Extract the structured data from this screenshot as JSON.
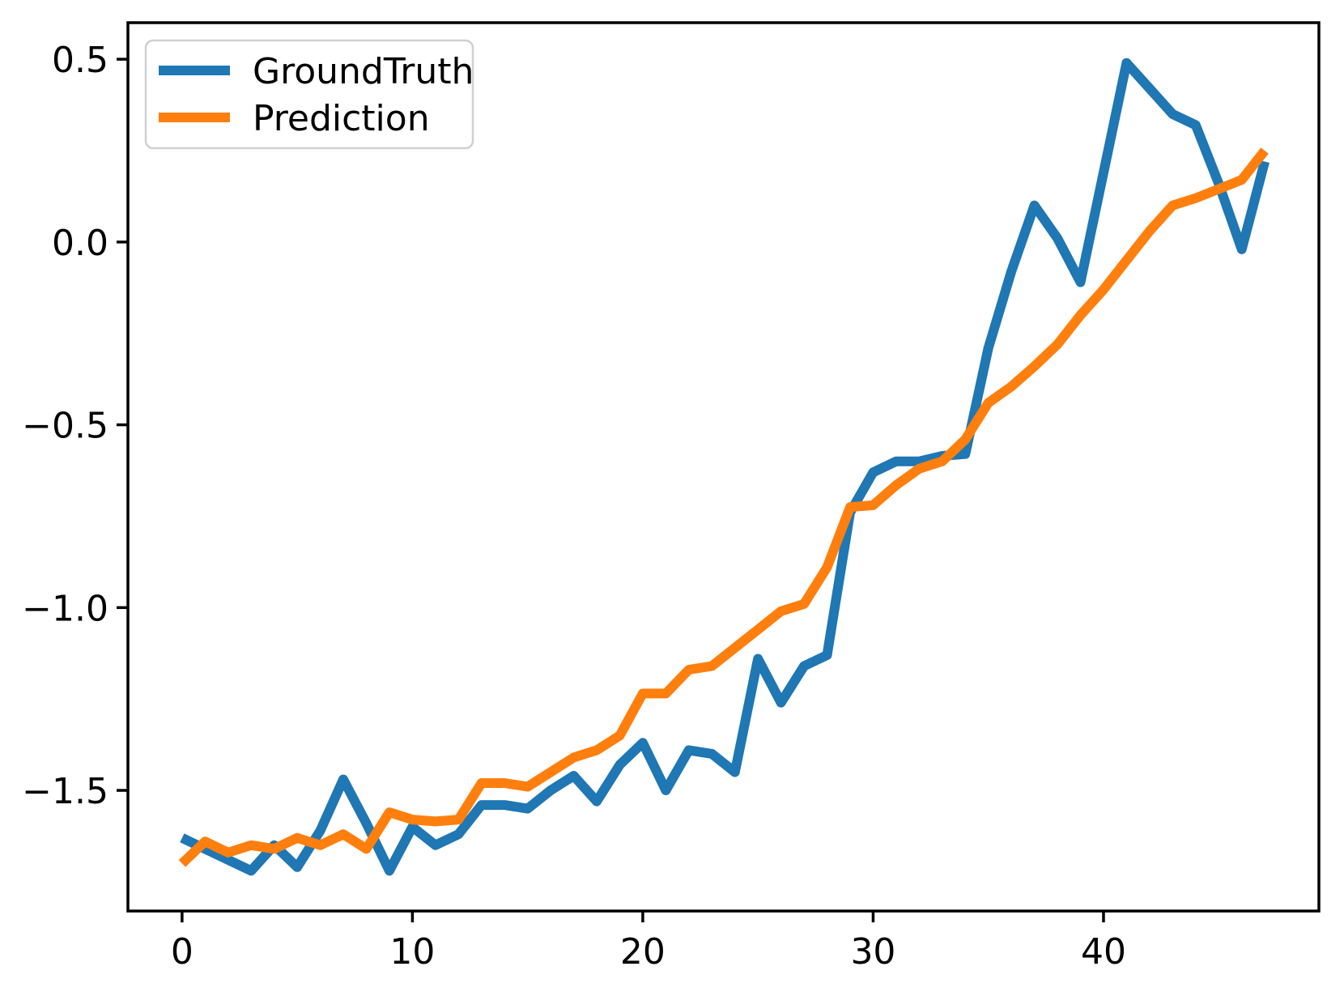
{
  "chart_data": {
    "type": "line",
    "title": "",
    "xlabel": "",
    "ylabel": "",
    "grid": false,
    "background_color": "#ffffff",
    "spine_color": "#000000",
    "x": [
      0,
      1,
      2,
      3,
      4,
      5,
      6,
      7,
      8,
      9,
      10,
      11,
      12,
      13,
      14,
      15,
      16,
      17,
      18,
      19,
      20,
      21,
      22,
      23,
      24,
      25,
      26,
      27,
      28,
      29,
      30,
      31,
      32,
      33,
      34,
      35,
      36,
      37,
      38,
      39,
      40,
      41,
      42,
      43,
      44,
      45,
      46,
      47
    ],
    "series": [
      {
        "name": "GroundTruth",
        "color": "#1f77b4",
        "values": [
          -1.63,
          -1.66,
          -1.69,
          -1.72,
          -1.65,
          -1.71,
          -1.61,
          -1.47,
          -1.59,
          -1.72,
          -1.6,
          -1.65,
          -1.62,
          -1.54,
          -1.54,
          -1.55,
          -1.5,
          -1.46,
          -1.53,
          -1.43,
          -1.37,
          -1.5,
          -1.39,
          -1.4,
          -1.45,
          -1.14,
          -1.26,
          -1.16,
          -1.13,
          -0.74,
          -0.63,
          -0.6,
          -0.6,
          -0.585,
          -0.58,
          -0.29,
          -0.08,
          0.1,
          0.01,
          -0.11,
          0.19,
          0.49,
          0.42,
          0.35,
          0.32,
          0.16,
          -0.02,
          0.22
        ]
      },
      {
        "name": "Prediction",
        "color": "#ff7f0e",
        "values": [
          -1.7,
          -1.64,
          -1.67,
          -1.65,
          -1.66,
          -1.63,
          -1.65,
          -1.62,
          -1.66,
          -1.56,
          -1.58,
          -1.585,
          -1.58,
          -1.48,
          -1.48,
          -1.49,
          -1.45,
          -1.41,
          -1.39,
          -1.35,
          -1.235,
          -1.235,
          -1.17,
          -1.16,
          -1.11,
          -1.06,
          -1.01,
          -0.99,
          -0.89,
          -0.725,
          -0.72,
          -0.665,
          -0.62,
          -0.6,
          -0.54,
          -0.44,
          -0.395,
          -0.34,
          -0.28,
          -0.2,
          -0.13,
          -0.05,
          0.03,
          0.1,
          0.12,
          0.145,
          0.17,
          0.25
        ]
      }
    ],
    "xlim": [
      -2.35,
      49.35
    ],
    "ylim": [
      -1.83,
      0.6
    ],
    "xticks": {
      "values": [
        0,
        10,
        20,
        30,
        40
      ],
      "labels": [
        "0",
        "10",
        "20",
        "30",
        "40"
      ]
    },
    "yticks": {
      "values": [
        0.5,
        0.0,
        -0.5,
        -1.0,
        -1.5
      ],
      "labels": [
        "0.5",
        "0.0",
        "−0.5",
        "−1.0",
        "−1.5"
      ]
    },
    "legend": {
      "position": "upper-left",
      "border_color": "#cccccc",
      "entries": [
        {
          "label": "GroundTruth",
          "color": "#1f77b4"
        },
        {
          "label": "Prediction",
          "color": "#ff7f0e"
        }
      ]
    }
  }
}
